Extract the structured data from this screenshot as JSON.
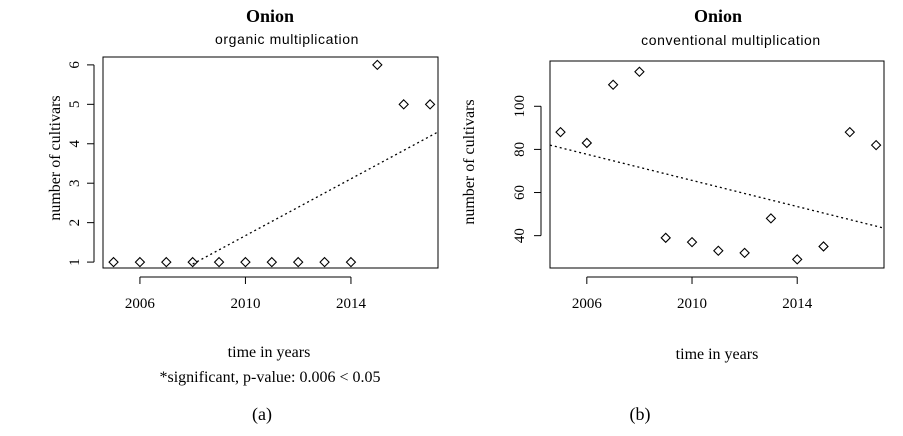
{
  "chart_data": [
    {
      "type": "scatter",
      "title": "Onion",
      "subtitle": "organic multiplication",
      "xlabel": "time in years",
      "ylabel": "number of cultivars",
      "note": "*significant, p-value:  0.006  < 0.05",
      "caption": "(a)",
      "xlim": [
        2004.6,
        2017.3
      ],
      "ylim": [
        0.85,
        6.2
      ],
      "xticks": [
        2006,
        2010,
        2014
      ],
      "yticks": [
        1,
        2,
        3,
        4,
        5,
        6
      ],
      "x": [
        2005,
        2006,
        2007,
        2008,
        2009,
        2010,
        2011,
        2012,
        2013,
        2014,
        2015,
        2016,
        2017
      ],
      "y": [
        1,
        1,
        1,
        1,
        1,
        1,
        1,
        1,
        1,
        1,
        6,
        5,
        5
      ],
      "trend": {
        "style": "dotted",
        "x": [
          2008,
          2017.3
        ],
        "y": [
          0.95,
          4.3
        ]
      },
      "grid": false
    },
    {
      "type": "scatter",
      "title": "Onion",
      "subtitle": "conventional multiplication",
      "xlabel": "time in years",
      "ylabel": "number of cultivars",
      "caption": "(b)",
      "xlim": [
        2004.6,
        2017.3
      ],
      "ylim": [
        25,
        121
      ],
      "xticks": [
        2006,
        2010,
        2014
      ],
      "yticks": [
        40,
        60,
        80,
        100
      ],
      "x": [
        2005,
        2006,
        2007,
        2008,
        2009,
        2010,
        2011,
        2012,
        2013,
        2014,
        2015,
        2016,
        2017
      ],
      "y": [
        88,
        83,
        110,
        116,
        39,
        37,
        33,
        32,
        48,
        29,
        35,
        88,
        82
      ],
      "trend": {
        "style": "dotted",
        "x": [
          2004.6,
          2017.3
        ],
        "y": [
          82,
          43.5
        ]
      },
      "grid": false
    }
  ]
}
